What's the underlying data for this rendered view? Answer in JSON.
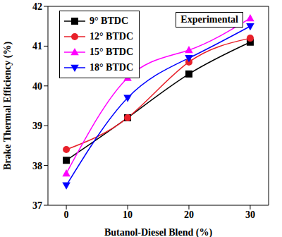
{
  "chart_data": {
    "type": "line",
    "annotation": "Experimental",
    "x_label": "Butanol-Diesel Blend (%)",
    "y_label": "Brake Thermal Efficiency (%)",
    "x": [
      0,
      10,
      20,
      30
    ],
    "xlim": [
      -3,
      33
    ],
    "xticks": [
      0,
      10,
      20,
      30
    ],
    "ylim": [
      37,
      42
    ],
    "yticks": [
      37,
      38,
      39,
      40,
      41,
      42
    ],
    "legend": "upper left",
    "grid": false,
    "series": [
      {
        "name": "9° BTDC",
        "color": "#000000",
        "marker": "square",
        "values": [
          38.13,
          39.2,
          40.3,
          41.1
        ]
      },
      {
        "name": "12° BTDC",
        "color": "#e8202a",
        "marker": "circle",
        "values": [
          38.4,
          39.2,
          40.6,
          41.2
        ]
      },
      {
        "name": "15° BTDC",
        "color": "#ff00ff",
        "marker": "triangle",
        "values": [
          37.8,
          40.2,
          40.9,
          41.7
        ]
      },
      {
        "name": "18° BTDC",
        "color": "#0000ff",
        "marker": "triangle-down",
        "values": [
          37.5,
          39.7,
          40.7,
          41.5
        ]
      }
    ]
  }
}
